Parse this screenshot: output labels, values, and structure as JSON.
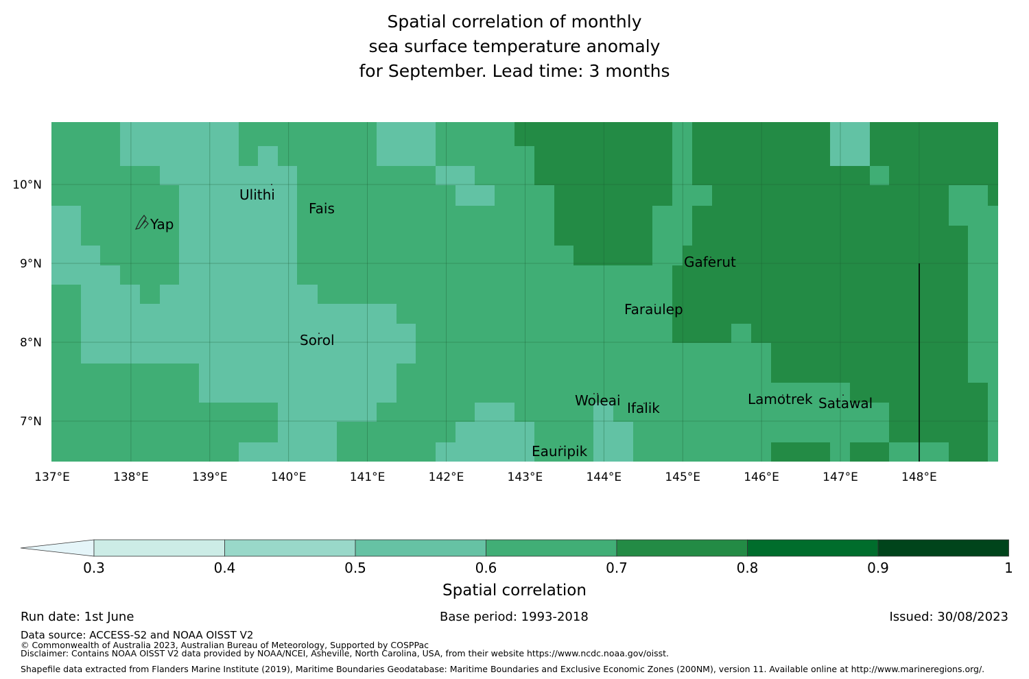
{
  "title": {
    "line1": "Spatial correlation of monthly",
    "line2": "sea surface temperature anomaly",
    "line3": "for September. Lead time: 3 months"
  },
  "map": {
    "lon_labels": [
      "137°E",
      "138°E",
      "139°E",
      "140°E",
      "141°E",
      "142°E",
      "143°E",
      "144°E",
      "145°E",
      "146°E",
      "147°E",
      "148°E"
    ],
    "lat_labels": [
      "10°N",
      "9°N",
      "8°N",
      "7°N"
    ],
    "islands": [
      "Ulithi",
      "Fais",
      "Yap",
      "Gaferut",
      "Faraulep",
      "Sorol",
      "Woleai",
      "Ifalik",
      "Lamotrek",
      "Satawal",
      "Eauripik"
    ],
    "colors": {
      "c05": "#62c2a4",
      "c06": "#40ae75",
      "c07": "#238b45"
    }
  },
  "colorbar": {
    "ticks": [
      "0.3",
      "0.4",
      "0.5",
      "0.6",
      "0.7",
      "0.8",
      "0.9",
      "1"
    ],
    "label": "Spatial correlation",
    "colors": [
      "#e5f5f9",
      "#ccece6",
      "#99d8c9",
      "#66c2a4",
      "#41ae76",
      "#238b45",
      "#006d2c",
      "#00441b"
    ]
  },
  "footer": {
    "run_date": "Run date: 1st June",
    "base_period": "Base period: 1993-2018",
    "issued": "Issued: 30/08/2023",
    "data_source": "Data source: ACCESS-S2 and NOAA OISST V2",
    "copyright": "© Commonwealth of Australia 2023, Australian Bureau of Meteorology, Supported by COSPPac",
    "disclaimer": "Disclaimer: Contains NOAA OISST V2 data provided by NOAA/NCEI, Asheville, North Carolina, USA, from their website https://www.ncdc.noaa.gov/oisst.",
    "shapefile": "Shapefile data extracted from Flanders Marine Institute (2019), Maritime Boundaries Geodatabase: Maritime Boundaries and Exclusive Economic Zones (200NM), version 11. Available online at http://www.marineregions.org/."
  }
}
